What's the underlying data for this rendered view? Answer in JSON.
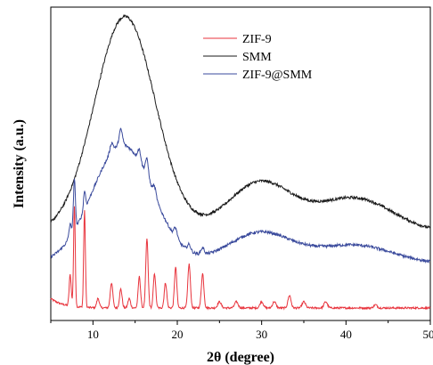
{
  "chart_data": {
    "type": "line",
    "title": "",
    "xlabel": "2θ (degree)",
    "ylabel": "Intensity (a.u.)",
    "xlim": [
      5,
      50
    ],
    "ylim": [
      0,
      100
    ],
    "xticks": [
      10,
      20,
      30,
      40,
      50
    ],
    "yticks_labeled": false,
    "grid": false,
    "legend_placement": "top-right",
    "series": [
      {
        "name": "ZIF-9",
        "color": "#e8333c",
        "baseline": 4,
        "peaks": [
          [
            7.3,
            10,
            0.12
          ],
          [
            7.8,
            32,
            0.1
          ],
          [
            9.0,
            31,
            0.1
          ],
          [
            10.6,
            3,
            0.15
          ],
          [
            12.2,
            8,
            0.15
          ],
          [
            13.3,
            6,
            0.15
          ],
          [
            14.3,
            3,
            0.15
          ],
          [
            15.5,
            10,
            0.14
          ],
          [
            16.4,
            22,
            0.14
          ],
          [
            17.3,
            11,
            0.14
          ],
          [
            18.6,
            8,
            0.15
          ],
          [
            19.8,
            13,
            0.14
          ],
          [
            21.4,
            14,
            0.15
          ],
          [
            23.0,
            11,
            0.15
          ],
          [
            25.0,
            2,
            0.2
          ],
          [
            27.0,
            2,
            0.2
          ],
          [
            30.0,
            2,
            0.2
          ],
          [
            31.5,
            2,
            0.2
          ],
          [
            33.3,
            4,
            0.18
          ],
          [
            35.0,
            2,
            0.2
          ],
          [
            37.6,
            2,
            0.2
          ],
          [
            43.5,
            1,
            0.2
          ]
        ]
      },
      {
        "name": "SMM",
        "color": "#1a1a1a",
        "baseline": 28,
        "components": [
          [
            13.8,
            69,
            3.6
          ],
          [
            29.8,
            16,
            3.8
          ],
          [
            41.0,
            11,
            4.5
          ]
        ]
      },
      {
        "name": "ZIF-9@SMM",
        "color": "#3a4a9c",
        "baseline": 18,
        "components": [
          [
            13.5,
            38,
            3.6
          ],
          [
            29.8,
            10,
            3.8
          ],
          [
            41.0,
            6,
            4.5
          ]
        ],
        "peaks": [
          [
            7.3,
            4,
            0.15
          ],
          [
            7.8,
            16,
            0.12
          ],
          [
            9.0,
            6,
            0.12
          ],
          [
            12.2,
            3,
            0.2
          ],
          [
            13.3,
            5,
            0.2
          ],
          [
            15.5,
            4,
            0.2
          ],
          [
            16.4,
            6,
            0.2
          ],
          [
            17.3,
            3,
            0.2
          ],
          [
            19.8,
            3,
            0.2
          ],
          [
            21.4,
            2,
            0.2
          ],
          [
            23.0,
            2,
            0.2
          ]
        ]
      }
    ]
  }
}
